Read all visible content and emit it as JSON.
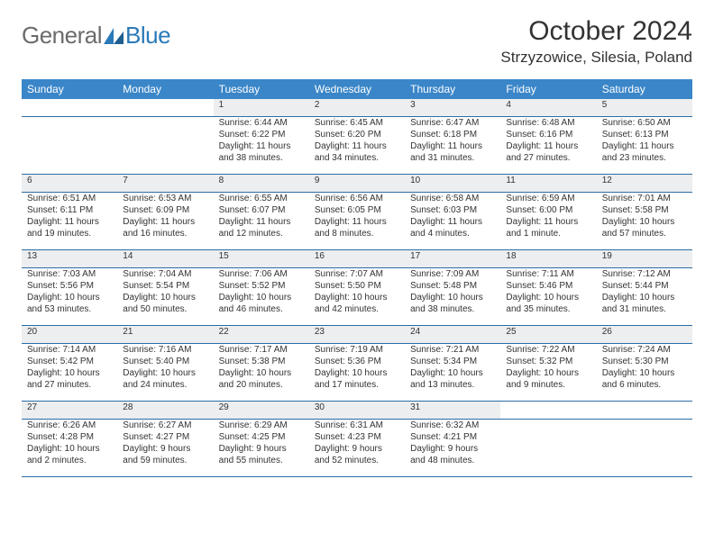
{
  "brand": {
    "text1": "General",
    "text2": "Blue"
  },
  "title": "October 2024",
  "location": "Strzyzowice, Silesia, Poland",
  "colors": {
    "header_bg": "#3a86c8",
    "header_text": "#ffffff",
    "daynum_bg": "#eceeef",
    "rule": "#2a6ea8",
    "brand_gray": "#6b6b6b",
    "brand_blue": "#2a7ab9"
  },
  "weekdays": [
    "Sunday",
    "Monday",
    "Tuesday",
    "Wednesday",
    "Thursday",
    "Friday",
    "Saturday"
  ],
  "weeks": [
    {
      "nums": [
        "",
        "",
        "1",
        "2",
        "3",
        "4",
        "5"
      ],
      "cells": [
        [],
        [],
        [
          "Sunrise: 6:44 AM",
          "Sunset: 6:22 PM",
          "Daylight: 11 hours",
          "and 38 minutes."
        ],
        [
          "Sunrise: 6:45 AM",
          "Sunset: 6:20 PM",
          "Daylight: 11 hours",
          "and 34 minutes."
        ],
        [
          "Sunrise: 6:47 AM",
          "Sunset: 6:18 PM",
          "Daylight: 11 hours",
          "and 31 minutes."
        ],
        [
          "Sunrise: 6:48 AM",
          "Sunset: 6:16 PM",
          "Daylight: 11 hours",
          "and 27 minutes."
        ],
        [
          "Sunrise: 6:50 AM",
          "Sunset: 6:13 PM",
          "Daylight: 11 hours",
          "and 23 minutes."
        ]
      ]
    },
    {
      "nums": [
        "6",
        "7",
        "8",
        "9",
        "10",
        "11",
        "12"
      ],
      "cells": [
        [
          "Sunrise: 6:51 AM",
          "Sunset: 6:11 PM",
          "Daylight: 11 hours",
          "and 19 minutes."
        ],
        [
          "Sunrise: 6:53 AM",
          "Sunset: 6:09 PM",
          "Daylight: 11 hours",
          "and 16 minutes."
        ],
        [
          "Sunrise: 6:55 AM",
          "Sunset: 6:07 PM",
          "Daylight: 11 hours",
          "and 12 minutes."
        ],
        [
          "Sunrise: 6:56 AM",
          "Sunset: 6:05 PM",
          "Daylight: 11 hours",
          "and 8 minutes."
        ],
        [
          "Sunrise: 6:58 AM",
          "Sunset: 6:03 PM",
          "Daylight: 11 hours",
          "and 4 minutes."
        ],
        [
          "Sunrise: 6:59 AM",
          "Sunset: 6:00 PM",
          "Daylight: 11 hours",
          "and 1 minute."
        ],
        [
          "Sunrise: 7:01 AM",
          "Sunset: 5:58 PM",
          "Daylight: 10 hours",
          "and 57 minutes."
        ]
      ]
    },
    {
      "nums": [
        "13",
        "14",
        "15",
        "16",
        "17",
        "18",
        "19"
      ],
      "cells": [
        [
          "Sunrise: 7:03 AM",
          "Sunset: 5:56 PM",
          "Daylight: 10 hours",
          "and 53 minutes."
        ],
        [
          "Sunrise: 7:04 AM",
          "Sunset: 5:54 PM",
          "Daylight: 10 hours",
          "and 50 minutes."
        ],
        [
          "Sunrise: 7:06 AM",
          "Sunset: 5:52 PM",
          "Daylight: 10 hours",
          "and 46 minutes."
        ],
        [
          "Sunrise: 7:07 AM",
          "Sunset: 5:50 PM",
          "Daylight: 10 hours",
          "and 42 minutes."
        ],
        [
          "Sunrise: 7:09 AM",
          "Sunset: 5:48 PM",
          "Daylight: 10 hours",
          "and 38 minutes."
        ],
        [
          "Sunrise: 7:11 AM",
          "Sunset: 5:46 PM",
          "Daylight: 10 hours",
          "and 35 minutes."
        ],
        [
          "Sunrise: 7:12 AM",
          "Sunset: 5:44 PM",
          "Daylight: 10 hours",
          "and 31 minutes."
        ]
      ]
    },
    {
      "nums": [
        "20",
        "21",
        "22",
        "23",
        "24",
        "25",
        "26"
      ],
      "cells": [
        [
          "Sunrise: 7:14 AM",
          "Sunset: 5:42 PM",
          "Daylight: 10 hours",
          "and 27 minutes."
        ],
        [
          "Sunrise: 7:16 AM",
          "Sunset: 5:40 PM",
          "Daylight: 10 hours",
          "and 24 minutes."
        ],
        [
          "Sunrise: 7:17 AM",
          "Sunset: 5:38 PM",
          "Daylight: 10 hours",
          "and 20 minutes."
        ],
        [
          "Sunrise: 7:19 AM",
          "Sunset: 5:36 PM",
          "Daylight: 10 hours",
          "and 17 minutes."
        ],
        [
          "Sunrise: 7:21 AM",
          "Sunset: 5:34 PM",
          "Daylight: 10 hours",
          "and 13 minutes."
        ],
        [
          "Sunrise: 7:22 AM",
          "Sunset: 5:32 PM",
          "Daylight: 10 hours",
          "and 9 minutes."
        ],
        [
          "Sunrise: 7:24 AM",
          "Sunset: 5:30 PM",
          "Daylight: 10 hours",
          "and 6 minutes."
        ]
      ]
    },
    {
      "nums": [
        "27",
        "28",
        "29",
        "30",
        "31",
        "",
        ""
      ],
      "cells": [
        [
          "Sunrise: 6:26 AM",
          "Sunset: 4:28 PM",
          "Daylight: 10 hours",
          "and 2 minutes."
        ],
        [
          "Sunrise: 6:27 AM",
          "Sunset: 4:27 PM",
          "Daylight: 9 hours",
          "and 59 minutes."
        ],
        [
          "Sunrise: 6:29 AM",
          "Sunset: 4:25 PM",
          "Daylight: 9 hours",
          "and 55 minutes."
        ],
        [
          "Sunrise: 6:31 AM",
          "Sunset: 4:23 PM",
          "Daylight: 9 hours",
          "and 52 minutes."
        ],
        [
          "Sunrise: 6:32 AM",
          "Sunset: 4:21 PM",
          "Daylight: 9 hours",
          "and 48 minutes."
        ],
        [],
        []
      ]
    }
  ]
}
